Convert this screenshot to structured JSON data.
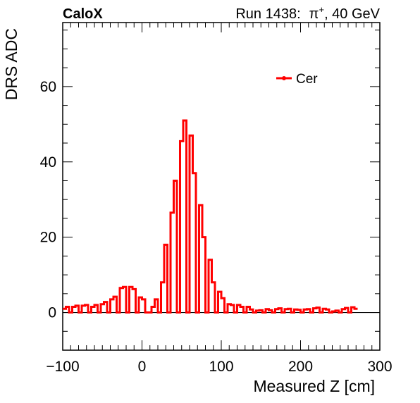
{
  "header": {
    "experiment": "CaloX",
    "run_label": "Run 1438:",
    "particle_base": "π",
    "particle_sup": "+",
    "energy": ", 40 GeV"
  },
  "chart_data": {
    "type": "line",
    "subtype": "step-histogram",
    "xlabel": "Measured Z [cm]",
    "ylabel": "DRS ADC",
    "xlim": [
      -100,
      300
    ],
    "ylim": [
      -10,
      77
    ],
    "x_ticks": [
      -100,
      0,
      100,
      200,
      300
    ],
    "x_tick_labels": [
      "−100",
      "0",
      "100",
      "200",
      "300"
    ],
    "y_ticks": [
      0,
      20,
      40,
      60
    ],
    "y_tick_labels": [
      "0",
      "20",
      "40",
      "60"
    ],
    "grid": false,
    "legend_position": "top-right",
    "zero_line": true,
    "series": [
      {
        "name": "Cer",
        "color": "#ff0000",
        "bin_width": 4,
        "x_start": -100,
        "values": [
          1.0,
          1.5,
          0,
          1.5,
          1.8,
          0,
          1.8,
          2.0,
          0,
          1.5,
          2.0,
          0,
          2.2,
          2.8,
          0,
          3.5,
          4.2,
          0,
          6.5,
          6.8,
          0,
          6.8,
          6.2,
          0,
          4.0,
          3.5,
          0,
          0,
          1.5,
          3.5,
          0,
          8.0,
          18.0,
          0,
          26.5,
          35.0,
          0,
          45.5,
          51.0,
          0,
          47.0,
          37.0,
          0,
          28.5,
          20.0,
          0,
          14.0,
          8.0,
          0,
          5.5,
          3.8,
          0,
          2.2,
          2.0,
          0,
          2.0,
          1.5,
          0,
          1.5,
          0.8,
          0,
          0.5,
          0.6,
          0,
          0.9,
          0.6,
          0,
          0.9,
          1.1,
          0,
          0.9,
          1.0,
          0,
          0.8,
          0.7,
          0,
          0.8,
          0.9,
          0,
          1.1,
          1.3,
          0,
          1.0,
          0.8,
          0,
          0.3,
          0.5,
          0,
          0.9,
          1.2,
          0,
          1.4,
          1.0
        ]
      }
    ]
  }
}
